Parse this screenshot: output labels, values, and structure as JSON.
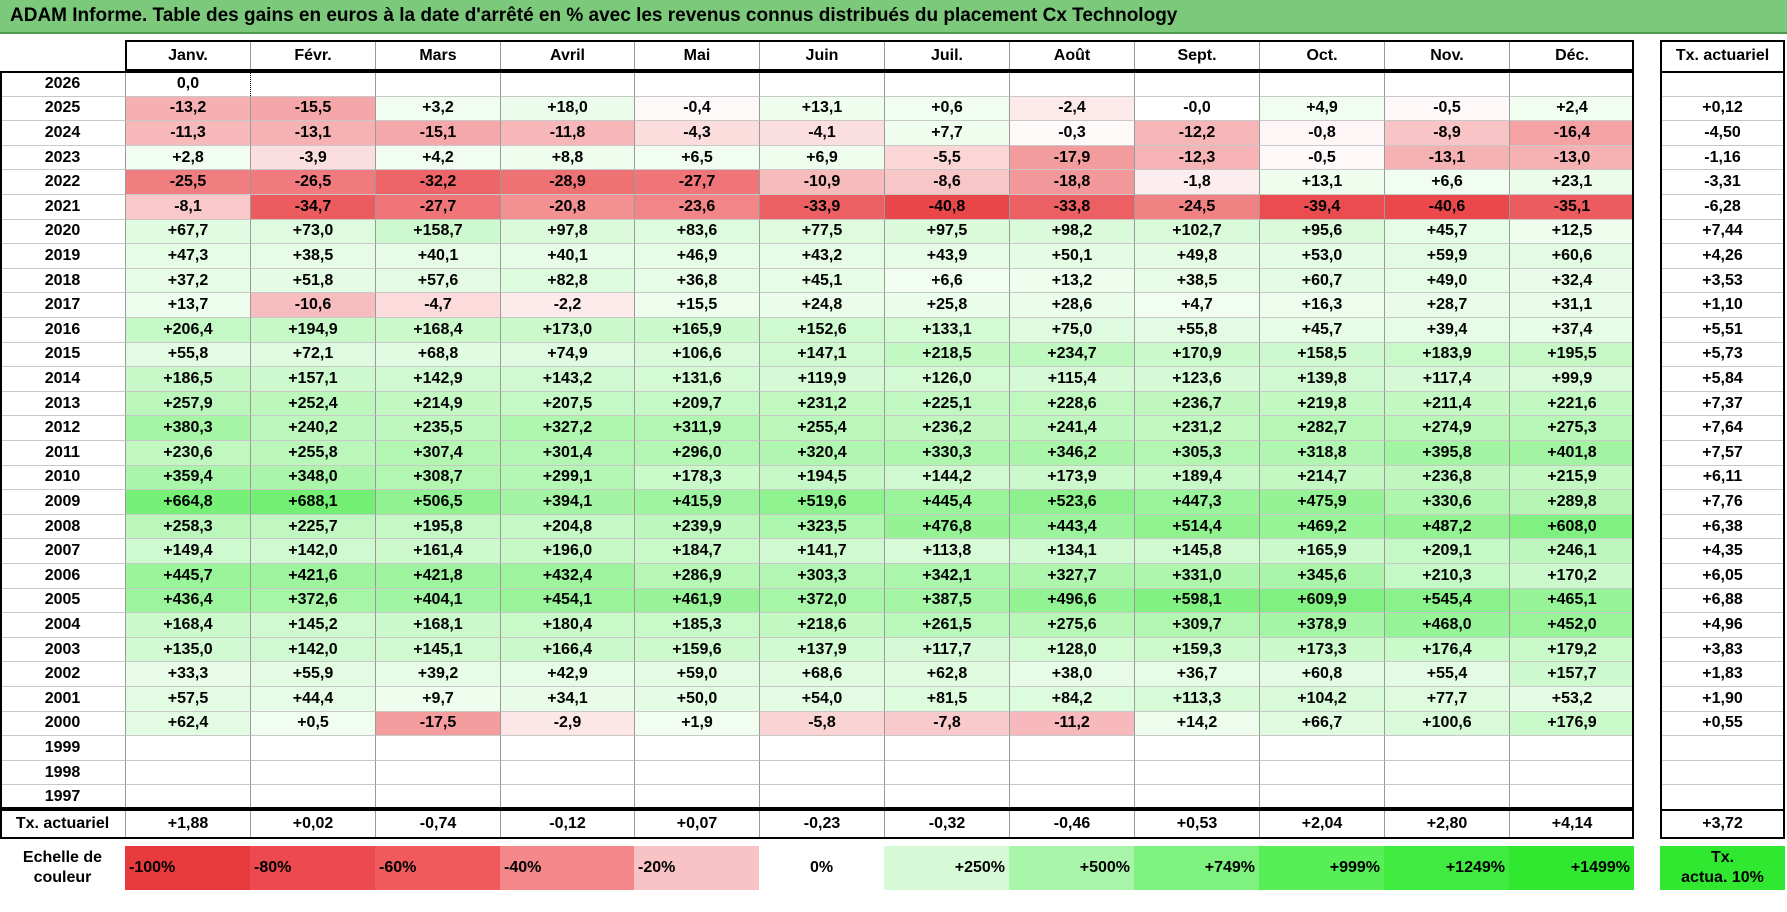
{
  "title": "ADAM Informe. Table des gains en euros à la date d'arrêté en % avec les revenus connus distribués du placement Cx Technology",
  "months": [
    "Janv.",
    "Févr.",
    "Mars",
    "Avril",
    "Mai",
    "Juin",
    "Juil.",
    "Août",
    "Sept.",
    "Oct.",
    "Nov.",
    "Déc."
  ],
  "tx_header": "Tx. actuariel",
  "rows": [
    {
      "year": "2026",
      "values": [
        "0,0",
        "",
        "",
        "",
        "",
        "",
        "",
        "",
        "",
        "",
        "",
        ""
      ],
      "tx": ""
    },
    {
      "year": "2025",
      "values": [
        "-13,2",
        "-15,5",
        "+3,2",
        "+18,0",
        "-0,4",
        "+13,1",
        "+0,6",
        "-2,4",
        "-0,0",
        "+4,9",
        "-0,5",
        "+2,4"
      ],
      "tx": "+0,12"
    },
    {
      "year": "2024",
      "values": [
        "-11,3",
        "-13,1",
        "-15,1",
        "-11,8",
        "-4,3",
        "-4,1",
        "+7,7",
        "-0,3",
        "-12,2",
        "-0,8",
        "-8,9",
        "-16,4"
      ],
      "tx": "-4,50"
    },
    {
      "year": "2023",
      "values": [
        "+2,8",
        "-3,9",
        "+4,2",
        "+8,8",
        "+6,5",
        "+6,9",
        "-5,5",
        "-17,9",
        "-12,3",
        "-0,5",
        "-13,1",
        "-13,0"
      ],
      "tx": "-1,16"
    },
    {
      "year": "2022",
      "values": [
        "-25,5",
        "-26,5",
        "-32,2",
        "-28,9",
        "-27,7",
        "-10,9",
        "-8,6",
        "-18,8",
        "-1,8",
        "+13,1",
        "+6,6",
        "+23,1"
      ],
      "tx": "-3,31"
    },
    {
      "year": "2021",
      "values": [
        "-8,1",
        "-34,7",
        "-27,7",
        "-20,8",
        "-23,6",
        "-33,9",
        "-40,8",
        "-33,8",
        "-24,5",
        "-39,4",
        "-40,6",
        "-35,1"
      ],
      "tx": "-6,28"
    },
    {
      "year": "2020",
      "values": [
        "+67,7",
        "+73,0",
        "+158,7",
        "+97,8",
        "+83,6",
        "+77,5",
        "+97,5",
        "+98,2",
        "+102,7",
        "+95,6",
        "+45,7",
        "+12,5"
      ],
      "tx": "+7,44"
    },
    {
      "year": "2019",
      "values": [
        "+47,3",
        "+38,5",
        "+40,1",
        "+40,1",
        "+46,9",
        "+43,2",
        "+43,9",
        "+50,1",
        "+49,8",
        "+53,0",
        "+59,9",
        "+60,6"
      ],
      "tx": "+4,26"
    },
    {
      "year": "2018",
      "values": [
        "+37,2",
        "+51,8",
        "+57,6",
        "+82,8",
        "+36,8",
        "+45,1",
        "+6,6",
        "+13,2",
        "+38,5",
        "+60,7",
        "+49,0",
        "+32,4"
      ],
      "tx": "+3,53"
    },
    {
      "year": "2017",
      "values": [
        "+13,7",
        "-10,6",
        "-4,7",
        "-2,2",
        "+15,5",
        "+24,8",
        "+25,8",
        "+28,6",
        "+4,7",
        "+16,3",
        "+28,7",
        "+31,1"
      ],
      "tx": "+1,10"
    },
    {
      "year": "2016",
      "values": [
        "+206,4",
        "+194,9",
        "+168,4",
        "+173,0",
        "+165,9",
        "+152,6",
        "+133,1",
        "+75,0",
        "+55,8",
        "+45,7",
        "+39,4",
        "+37,4"
      ],
      "tx": "+5,51"
    },
    {
      "year": "2015",
      "values": [
        "+55,8",
        "+72,1",
        "+68,8",
        "+74,9",
        "+106,6",
        "+147,1",
        "+218,5",
        "+234,7",
        "+170,9",
        "+158,5",
        "+183,9",
        "+195,5"
      ],
      "tx": "+5,73"
    },
    {
      "year": "2014",
      "values": [
        "+186,5",
        "+157,1",
        "+142,9",
        "+143,2",
        "+131,6",
        "+119,9",
        "+126,0",
        "+115,4",
        "+123,6",
        "+139,8",
        "+117,4",
        "+99,9"
      ],
      "tx": "+5,84"
    },
    {
      "year": "2013",
      "values": [
        "+257,9",
        "+252,4",
        "+214,9",
        "+207,5",
        "+209,7",
        "+231,2",
        "+225,1",
        "+228,6",
        "+236,7",
        "+219,8",
        "+211,4",
        "+221,6"
      ],
      "tx": "+7,37"
    },
    {
      "year": "2012",
      "values": [
        "+380,3",
        "+240,2",
        "+235,5",
        "+327,2",
        "+311,9",
        "+255,4",
        "+236,2",
        "+241,4",
        "+231,2",
        "+282,7",
        "+274,9",
        "+275,3"
      ],
      "tx": "+7,64"
    },
    {
      "year": "2011",
      "values": [
        "+230,6",
        "+255,8",
        "+307,4",
        "+301,4",
        "+296,0",
        "+320,4",
        "+330,3",
        "+346,2",
        "+305,3",
        "+318,8",
        "+395,8",
        "+401,8"
      ],
      "tx": "+7,57"
    },
    {
      "year": "2010",
      "values": [
        "+359,4",
        "+348,0",
        "+308,7",
        "+299,1",
        "+178,3",
        "+194,5",
        "+144,2",
        "+173,9",
        "+189,4",
        "+214,7",
        "+236,8",
        "+215,9"
      ],
      "tx": "+6,11"
    },
    {
      "year": "2009",
      "values": [
        "+664,8",
        "+688,1",
        "+506,5",
        "+394,1",
        "+415,9",
        "+519,6",
        "+445,4",
        "+523,6",
        "+447,3",
        "+475,9",
        "+330,6",
        "+289,8"
      ],
      "tx": "+7,76"
    },
    {
      "year": "2008",
      "values": [
        "+258,3",
        "+225,7",
        "+195,8",
        "+204,8",
        "+239,9",
        "+323,5",
        "+476,8",
        "+443,4",
        "+514,4",
        "+469,2",
        "+487,2",
        "+608,0"
      ],
      "tx": "+6,38"
    },
    {
      "year": "2007",
      "values": [
        "+149,4",
        "+142,0",
        "+161,4",
        "+196,0",
        "+184,7",
        "+141,7",
        "+113,8",
        "+134,1",
        "+145,8",
        "+165,9",
        "+209,1",
        "+246,1"
      ],
      "tx": "+4,35"
    },
    {
      "year": "2006",
      "values": [
        "+445,7",
        "+421,6",
        "+421,8",
        "+432,4",
        "+286,9",
        "+303,3",
        "+342,1",
        "+327,7",
        "+331,0",
        "+345,6",
        "+210,3",
        "+170,2"
      ],
      "tx": "+6,05"
    },
    {
      "year": "2005",
      "values": [
        "+436,4",
        "+372,6",
        "+404,1",
        "+454,1",
        "+461,9",
        "+372,0",
        "+387,5",
        "+496,6",
        "+598,1",
        "+609,9",
        "+545,4",
        "+465,1"
      ],
      "tx": "+6,88"
    },
    {
      "year": "2004",
      "values": [
        "+168,4",
        "+145,2",
        "+168,1",
        "+180,4",
        "+185,3",
        "+218,6",
        "+261,5",
        "+275,6",
        "+309,7",
        "+378,9",
        "+468,0",
        "+452,0"
      ],
      "tx": "+4,96"
    },
    {
      "year": "2003",
      "values": [
        "+135,0",
        "+142,0",
        "+145,1",
        "+166,4",
        "+159,6",
        "+137,9",
        "+117,7",
        "+128,0",
        "+159,3",
        "+173,3",
        "+176,4",
        "+179,2"
      ],
      "tx": "+3,83"
    },
    {
      "year": "2002",
      "values": [
        "+33,3",
        "+55,9",
        "+39,2",
        "+42,9",
        "+59,0",
        "+68,6",
        "+62,8",
        "+38,0",
        "+36,7",
        "+60,8",
        "+55,4",
        "+157,7"
      ],
      "tx": "+1,83"
    },
    {
      "year": "2001",
      "values": [
        "+57,5",
        "+44,4",
        "+9,7",
        "+34,1",
        "+50,0",
        "+54,0",
        "+81,5",
        "+84,2",
        "+113,3",
        "+104,2",
        "+77,7",
        "+53,2"
      ],
      "tx": "+1,90"
    },
    {
      "year": "2000",
      "values": [
        "+62,4",
        "+0,5",
        "-17,5",
        "-2,9",
        "+1,9",
        "-5,8",
        "-7,8",
        "-11,2",
        "+14,2",
        "+66,7",
        "+100,6",
        "+176,9"
      ],
      "tx": "+0,55"
    },
    {
      "year": "1999",
      "values": [
        "",
        "",
        "",
        "",
        "",
        "",
        "",
        "",
        "",
        "",
        "",
        ""
      ],
      "tx": ""
    },
    {
      "year": "1998",
      "values": [
        "",
        "",
        "",
        "",
        "",
        "",
        "",
        "",
        "",
        "",
        "",
        ""
      ],
      "tx": ""
    },
    {
      "year": "1997",
      "values": [
        "",
        "",
        "",
        "",
        "",
        "",
        "",
        "",
        "",
        "",
        "",
        ""
      ],
      "tx": ""
    }
  ],
  "footer": {
    "label": "Tx. actuariel",
    "values": [
      "+1,88",
      "+0,02",
      "-0,74",
      "-0,12",
      "+0,07",
      "-0,23",
      "-0,32",
      "-0,46",
      "+0,53",
      "+2,04",
      "+2,80",
      "+4,14"
    ],
    "tx": "+3,72"
  },
  "scale": {
    "label_line1": "Echelle de",
    "label_line2": "couleur",
    "items": [
      {
        "text": "-100%",
        "color": "#e8393d"
      },
      {
        "text": "-80%",
        "color": "#ec4a4e"
      },
      {
        "text": "-60%",
        "color": "#f05a5d"
      },
      {
        "text": "-40%",
        "color": "#f4878a"
      },
      {
        "text": "-20%",
        "color": "#f9c3c5"
      },
      {
        "text": "0%",
        "color": "#ffffff"
      },
      {
        "text": "+250%",
        "color": "#d6fad6"
      },
      {
        "text": "+500%",
        "color": "#a9f5a9"
      },
      {
        "text": "+749%",
        "color": "#7ef27e"
      },
      {
        "text": "+999%",
        "color": "#57ee57"
      },
      {
        "text": "+1249%",
        "color": "#40eb40"
      },
      {
        "text": "+1499%",
        "color": "#2fe82f"
      }
    ],
    "tx_line1": "Tx.",
    "tx_line2": "actua. 10%",
    "tx_color": "#2fe82f"
  },
  "colors": {
    "title_bg": "#7cc97c",
    "negative": "#e8393d",
    "positive": "#2fe82f"
  }
}
